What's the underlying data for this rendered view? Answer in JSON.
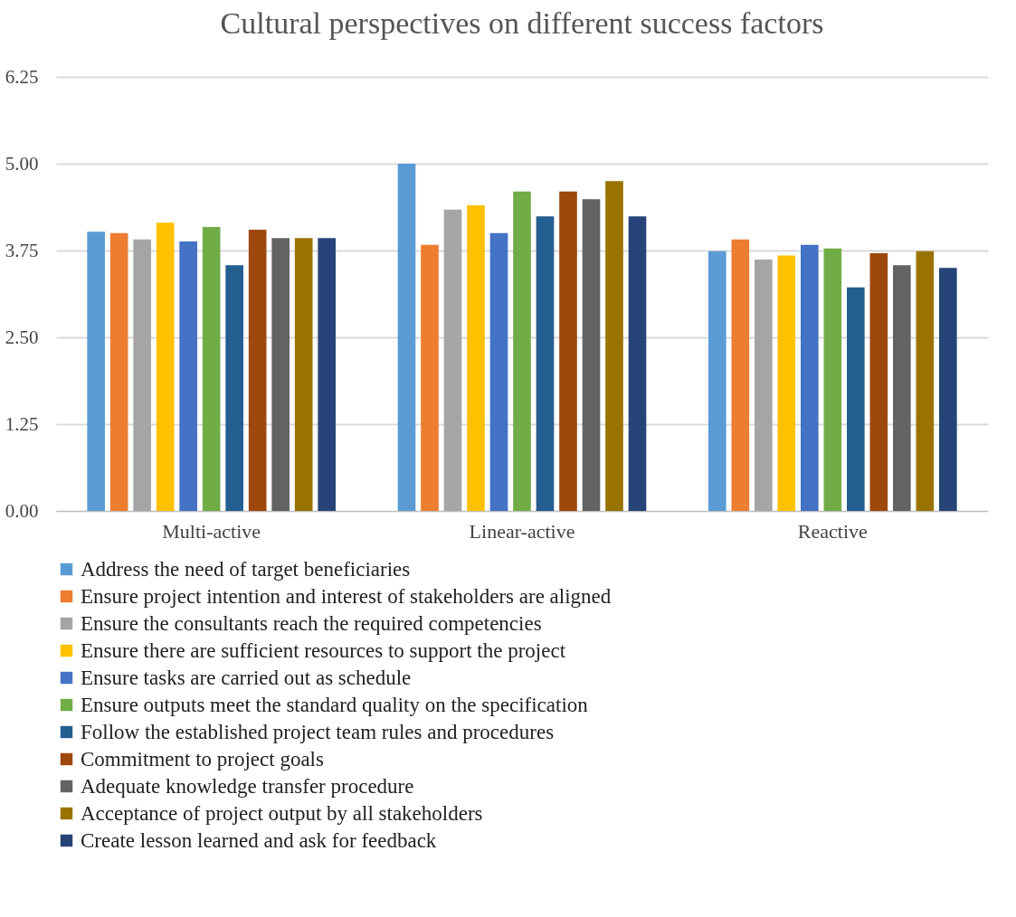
{
  "chart_data": {
    "type": "bar",
    "title": "Cultural perspectives on different success factors",
    "categories": [
      "Multi-active",
      "Linear-active",
      "Reactive"
    ],
    "series": [
      {
        "name": "Address the need of target beneficiaries",
        "color": "#5b9bd5",
        "values": [
          4.02,
          5.0,
          3.74
        ]
      },
      {
        "name": "Ensure project intention and interest of stakeholders are aligned",
        "color": "#ed7d31",
        "values": [
          4.0,
          3.83,
          3.91
        ]
      },
      {
        "name": "Ensure the consultants reach the required competencies",
        "color": "#a5a5a5",
        "values": [
          3.91,
          4.34,
          3.62
        ]
      },
      {
        "name": "Ensure there are sufficient resources to support the project",
        "color": "#ffc000",
        "values": [
          4.15,
          4.4,
          3.68
        ]
      },
      {
        "name": "Ensure tasks are carried out as schedule",
        "color": "#4472c4",
        "values": [
          3.88,
          4.0,
          3.83
        ]
      },
      {
        "name": "Ensure outputs meet the standard quality on the specification",
        "color": "#70ad47",
        "values": [
          4.09,
          4.6,
          3.78
        ]
      },
      {
        "name": "Follow the established project team rules and procedures",
        "color": "#255e91",
        "values": [
          3.54,
          4.24,
          3.22
        ]
      },
      {
        "name": "Commitment to project goals",
        "color": "#9e480e",
        "values": [
          4.05,
          4.6,
          3.71
        ]
      },
      {
        "name": "Adequate knowledge transfer procedure",
        "color": "#636363",
        "values": [
          3.93,
          4.49,
          3.54
        ]
      },
      {
        "name": "Acceptance of project output by all stakeholders",
        "color": "#997300",
        "values": [
          3.93,
          4.75,
          3.74
        ]
      },
      {
        "name": "Create lesson learned and ask for feedback",
        "color": "#264478",
        "values": [
          3.93,
          4.24,
          3.5
        ]
      }
    ],
    "ylim": [
      0,
      6.25
    ],
    "yticks": [
      {
        "value": 0,
        "label": "0.00"
      },
      {
        "value": 1.25,
        "label": "1.25"
      },
      {
        "value": 2.5,
        "label": "2.50"
      },
      {
        "value": 3.75,
        "label": "3.75"
      },
      {
        "value": 5,
        "label": "5.00"
      },
      {
        "value": 6.25,
        "label": "6.25"
      }
    ],
    "grid": "y",
    "legend": "bottom"
  }
}
